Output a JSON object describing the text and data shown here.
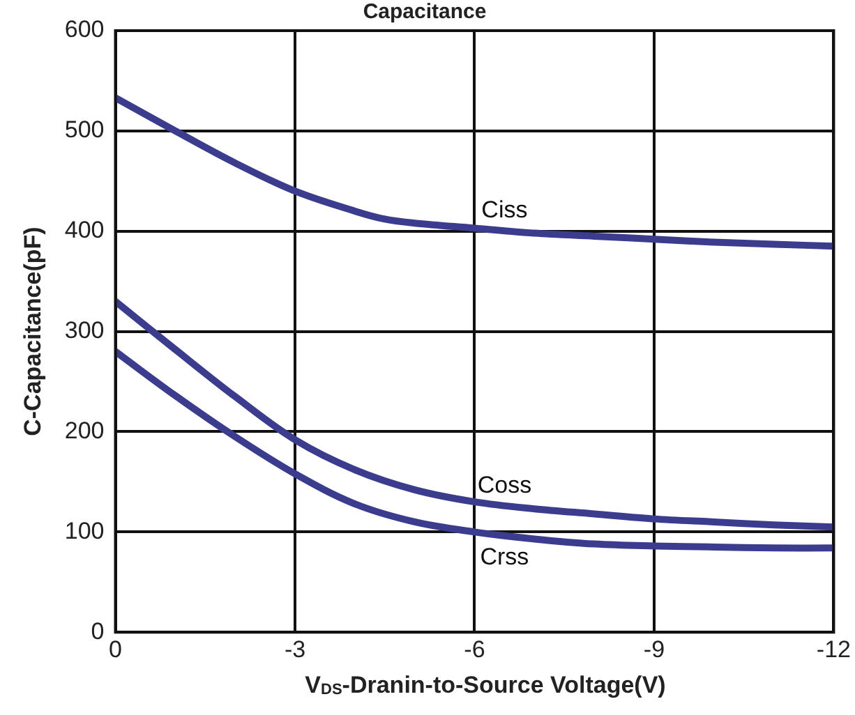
{
  "chart_data": {
    "type": "line",
    "title": "Capacitance",
    "xlabel": "V$_{DS}$-Dranin-to-Source Voltage(V)",
    "ylabel": "C-Capacitance(pF)",
    "xlim": [
      0,
      -12
    ],
    "xticks": [
      0,
      -3,
      -6,
      -9,
      -12
    ],
    "ylim": [
      0,
      600
    ],
    "yticks": [
      0,
      100,
      200,
      300,
      400,
      500,
      600
    ],
    "grid": true,
    "legend": false,
    "marker": "none",
    "line_style": "solid",
    "series": [
      {
        "name": "Ciss",
        "color": "#3c3c8e",
        "x": [
          0,
          -1,
          -2,
          -3,
          -4,
          -4.5,
          -5,
          -6,
          -7,
          -8,
          -9,
          -10,
          -11,
          -12
        ],
        "values": [
          533,
          500,
          468,
          440,
          420,
          412,
          408,
          403,
          398,
          395,
          392,
          389,
          387,
          385
        ]
      },
      {
        "name": "Coss",
        "color": "#3c3c8e",
        "x": [
          0,
          -1,
          -2,
          -3,
          -4,
          -5,
          -6,
          -7,
          -8,
          -9,
          -10,
          -11,
          -12
        ],
        "values": [
          330,
          282,
          235,
          192,
          162,
          142,
          130,
          123,
          118,
          113,
          110,
          107,
          105
        ]
      },
      {
        "name": "Crss",
        "color": "#3c3c8e",
        "x": [
          0,
          -1,
          -2,
          -3,
          -4,
          -5,
          -6,
          -7,
          -8,
          -9,
          -10,
          -11,
          -12
        ],
        "values": [
          280,
          236,
          195,
          158,
          128,
          110,
          100,
          93,
          88,
          86,
          85,
          84,
          84
        ]
      }
    ]
  }
}
